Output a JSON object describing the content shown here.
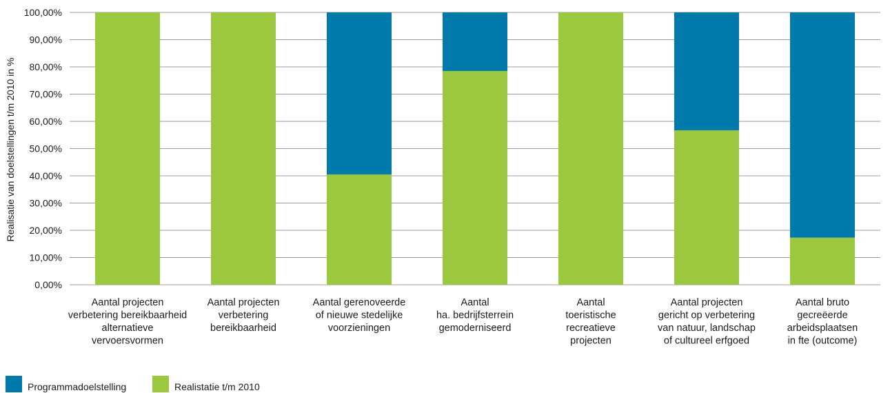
{
  "chart_data": {
    "type": "bar",
    "stacked": true,
    "title": "",
    "xlabel": "",
    "ylabel": "Realisatie van doelstellingen t/m 2010 in %",
    "ylim": [
      0,
      100
    ],
    "yticks": [
      "0,00%",
      "10,00%",
      "20,00%",
      "30,00%",
      "40,00%",
      "50,00%",
      "60,00%",
      "70,00%",
      "80,00%",
      "90,00%",
      "100,00%"
    ],
    "grid": true,
    "legend_position": "bottom-left",
    "categories": [
      [
        "Aantal projecten",
        "verbetering bereikbaarheid",
        "alternatieve",
        "vervoersvormen"
      ],
      [
        "Aantal projecten",
        "verbetering",
        "bereikbaarheid"
      ],
      [
        "Aantal gerenoveerde",
        "of nieuwe stedelijke",
        "voorzieningen"
      ],
      [
        "Aantal",
        "ha. bedrijfsterrein",
        "gemoderniseerd"
      ],
      [
        "Aantal",
        "toeristische",
        "recreatieve",
        "projecten"
      ],
      [
        "Aantal projecten",
        "gericht op verbetering",
        "van natuur, landschap",
        "of cultureel erfgoed"
      ],
      [
        "Aantal bruto",
        "gecreëerde",
        "arbeidsplaatsen",
        "in fte (outcome)"
      ]
    ],
    "series": [
      {
        "name": "Realistatie t/m 2010",
        "color": "#9bc83e",
        "values": [
          100,
          100,
          40.5,
          78.5,
          100,
          56.7,
          17.3
        ]
      },
      {
        "name": "Programmadoelstelling",
        "color": "#007aab",
        "values": [
          0,
          0,
          59.5,
          21.5,
          0,
          43.3,
          82.7
        ]
      }
    ],
    "legend": [
      {
        "name": "Programmadoelstelling",
        "color": "#007aab"
      },
      {
        "name": "Realistatie t/m 2010",
        "color": "#9bc83e"
      }
    ]
  }
}
